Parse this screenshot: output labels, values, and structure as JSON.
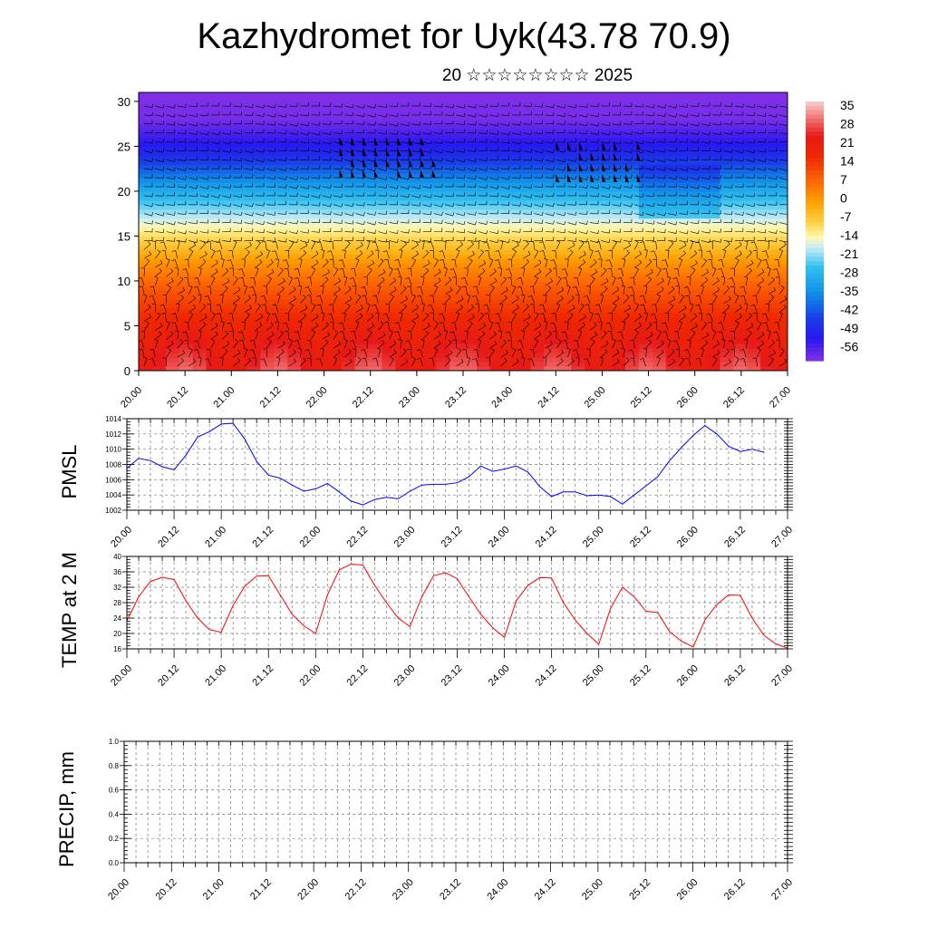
{
  "title": "Kazhydromet for Uyk(43.78 70.9)",
  "subtitle": "20 ☆☆☆☆☆☆☆☆ 2025",
  "time_labels": [
    "20.00",
    "20.12",
    "21.00",
    "21.12",
    "22.00",
    "22.12",
    "23.00",
    "23.12",
    "24.00",
    "24.12",
    "25.00",
    "25.12",
    "26.00",
    "26.12",
    "27.00"
  ],
  "chart_data": [
    {
      "type": "heatmap",
      "title": "",
      "ylabel": "",
      "y_ticks": [
        0,
        5,
        10,
        15,
        20,
        25,
        30
      ],
      "ylim": [
        0,
        31
      ],
      "xlim": [
        0,
        168
      ],
      "colorbar": {
        "labels": [
          "35",
          "28",
          "21",
          "14",
          "7",
          "0",
          "-7",
          "-14",
          "-21",
          "-28",
          "-35",
          "-42",
          "-49",
          "-56"
        ],
        "range": [
          -63,
          40
        ],
        "stops": [
          {
            "v": 40,
            "c": "#f7d0d0"
          },
          {
            "v": 33,
            "c": "#f07070"
          },
          {
            "v": 26,
            "c": "#e81818"
          },
          {
            "v": 18,
            "c": "#f02800"
          },
          {
            "v": 8,
            "c": "#ff6a00"
          },
          {
            "v": 0,
            "c": "#ffa000"
          },
          {
            "v": -8,
            "c": "#ffd040"
          },
          {
            "v": -14,
            "c": "#fff8b0"
          },
          {
            "v": -18,
            "c": "#c8ecf8"
          },
          {
            "v": -26,
            "c": "#30c0f0"
          },
          {
            "v": -36,
            "c": "#1090e8"
          },
          {
            "v": -46,
            "c": "#1840e8"
          },
          {
            "v": -54,
            "c": "#2818f0"
          },
          {
            "v": -63,
            "c": "#8030e8"
          }
        ]
      },
      "temperature_profile": [
        {
          "level": 0,
          "value": 28
        },
        {
          "level": 3,
          "value": 24
        },
        {
          "level": 6,
          "value": 18
        },
        {
          "level": 9,
          "value": 11
        },
        {
          "level": 12,
          "value": 2
        },
        {
          "level": 14,
          "value": -6
        },
        {
          "level": 16,
          "value": -14
        },
        {
          "level": 18,
          "value": -22
        },
        {
          "level": 20,
          "value": -30
        },
        {
          "level": 22,
          "value": -40
        },
        {
          "level": 24,
          "value": -50
        },
        {
          "level": 26,
          "value": -56
        },
        {
          "level": 28,
          "value": -62
        },
        {
          "level": 31,
          "value": -63
        }
      ]
    },
    {
      "type": "line",
      "title": "",
      "ylabel": "PMSL",
      "xlim": [
        0,
        168
      ],
      "ylim": [
        1002,
        1014
      ],
      "y_ticks": [
        1002,
        1004,
        1006,
        1008,
        1010,
        1012,
        1014
      ],
      "color": "#0000ff",
      "series": [
        {
          "x": [
            0,
            3,
            6,
            9,
            12,
            15,
            18,
            21,
            24,
            27,
            30,
            33,
            36,
            39,
            42,
            45,
            48,
            51,
            54,
            57,
            60,
            63,
            66,
            69,
            72,
            75,
            78,
            81,
            84,
            87,
            90,
            93,
            96,
            99,
            102,
            105,
            108,
            111,
            114,
            117,
            120,
            123,
            126,
            129,
            132,
            135,
            138,
            141,
            144,
            147,
            150,
            153,
            156,
            159,
            162
          ],
          "values": [
            1007.5,
            1008.8,
            1008.5,
            1007.7,
            1007.3,
            1009.2,
            1011.6,
            1012.3,
            1013.3,
            1013.4,
            1011.3,
            1008.4,
            1006.6,
            1006.2,
            1005.3,
            1004.5,
            1004.8,
            1005.5,
            1004.4,
            1003.2,
            1002.7,
            1003.4,
            1003.7,
            1003.5,
            1004.5,
            1005.3,
            1005.4,
            1005.4,
            1005.6,
            1006.4,
            1007.8,
            1007.1,
            1007.4,
            1007.8,
            1007.0,
            1005.1,
            1003.8,
            1004.4,
            1004.4,
            1003.9,
            1004.0,
            1003.8,
            1002.8,
            1004.0,
            1005.2,
            1006.4,
            1008.5,
            1010.2,
            1011.8,
            1013.1,
            1012.0,
            1010.4,
            1009.7,
            1010.0,
            1009.6
          ]
        }
      ]
    },
    {
      "type": "line",
      "title": "",
      "ylabel": "TEMP at 2 M",
      "xlim": [
        0,
        168
      ],
      "ylim": [
        16,
        40
      ],
      "y_ticks": [
        16,
        20,
        24,
        28,
        32,
        36,
        40
      ],
      "color": "#ff0000",
      "series": [
        {
          "x": [
            0,
            3,
            6,
            9,
            12,
            15,
            18,
            21,
            24,
            27,
            30,
            33,
            36,
            39,
            42,
            45,
            48,
            51,
            54,
            57,
            60,
            63,
            66,
            69,
            72,
            75,
            78,
            81,
            84,
            87,
            90,
            93,
            96,
            99,
            102,
            105,
            108,
            111,
            114,
            117,
            120,
            123,
            126,
            129,
            132,
            135,
            138,
            141,
            144,
            147,
            150,
            153,
            156,
            159,
            162,
            165,
            168
          ],
          "values": [
            23.3,
            29.5,
            33.5,
            34.6,
            34.0,
            28.5,
            24.0,
            21.0,
            20.3,
            27.3,
            32.3,
            34.9,
            35.0,
            30.0,
            25.0,
            22.0,
            20.0,
            30.0,
            36.5,
            38.0,
            37.8,
            32.5,
            28.0,
            24.0,
            21.8,
            29.5,
            35.0,
            35.8,
            34.2,
            29.5,
            25.0,
            21.5,
            19.0,
            28.5,
            32.5,
            34.5,
            34.4,
            28.0,
            23.5,
            20.0,
            17.2,
            26.5,
            32.0,
            29.5,
            25.8,
            25.4,
            20.5,
            18.0,
            16.5,
            23.5,
            27.5,
            30.0,
            29.9,
            24.0,
            19.5,
            17.3,
            16.2
          ]
        }
      ]
    },
    {
      "type": "line",
      "title": "",
      "ylabel": "PRECIP, mm",
      "xlim": [
        0,
        168
      ],
      "ylim": [
        0.0,
        1.0
      ],
      "y_ticks": [
        "0.0",
        "0.2",
        "0.4",
        "0.6",
        "0.8",
        "1.0"
      ],
      "color": "#006400",
      "series": [
        {
          "x": [
            0,
            168
          ],
          "values": [
            0,
            0
          ]
        }
      ]
    }
  ]
}
